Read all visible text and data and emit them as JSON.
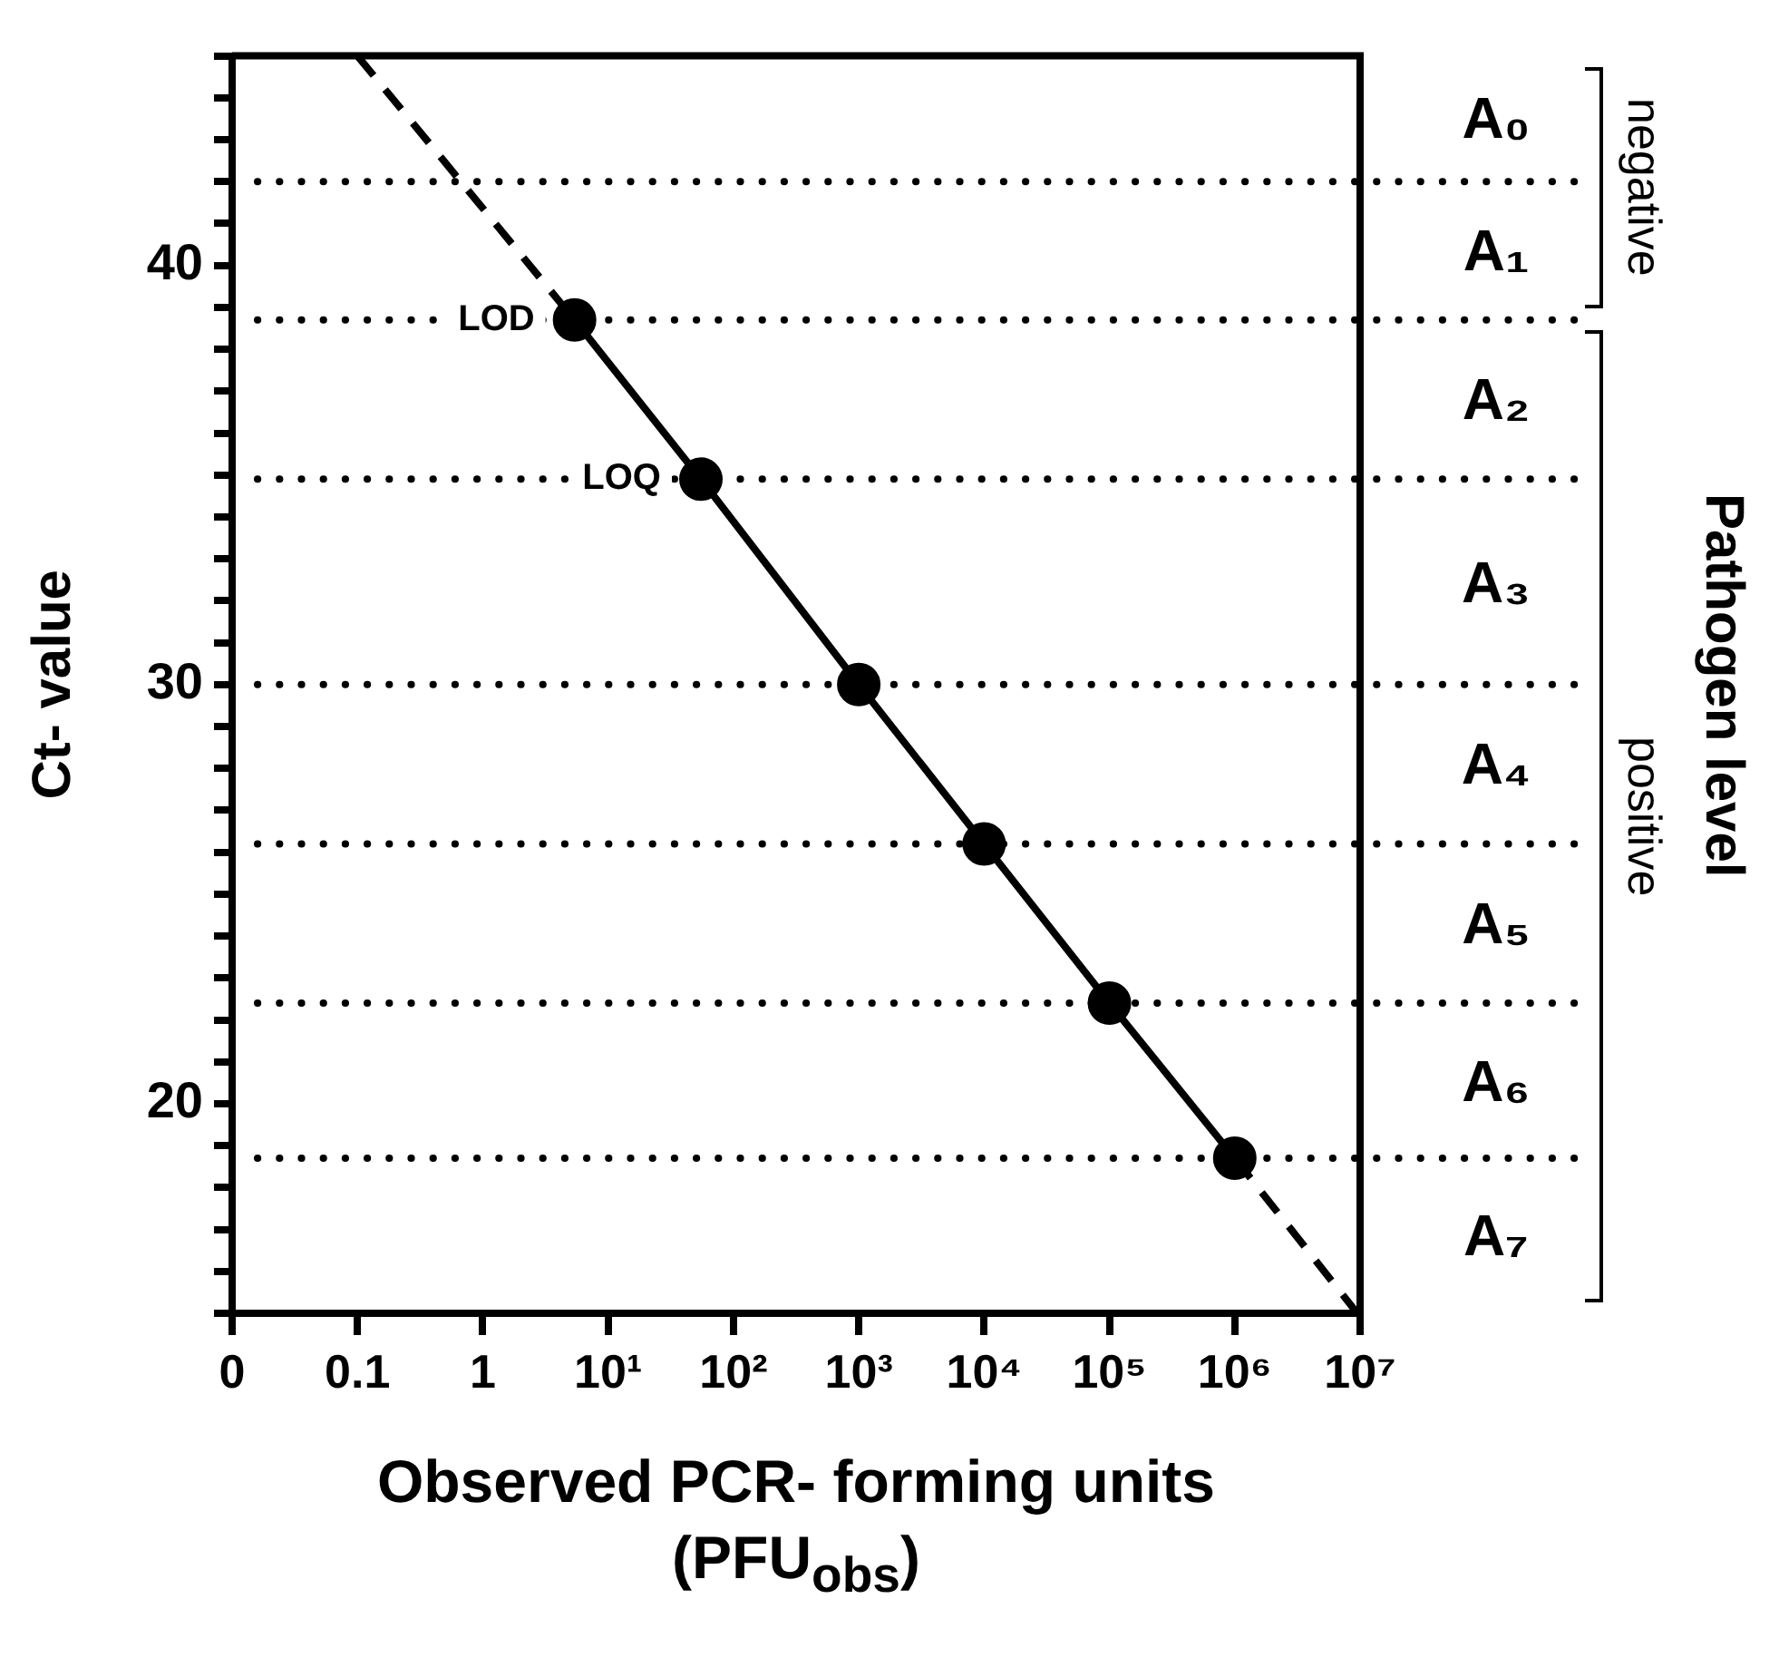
{
  "chart_data": {
    "type": "line",
    "xlabel": "Observed PCR- forming units\n(PFU$_{obs}$)",
    "ylabel": "Ct- value",
    "log": "x",
    "grid": false,
    "legend": false,
    "xlim": [
      0.01,
      10000000
    ],
    "xticks": [
      {
        "value": 0.01,
        "label": "0"
      },
      0.1,
      1,
      {
        "value": 10,
        "label": "10¹"
      },
      {
        "value": 100,
        "label": "10²"
      },
      {
        "value": 1000,
        "label": "10³"
      },
      {
        "value": 10000,
        "label": "10⁴"
      },
      {
        "value": 100000,
        "label": "10⁵"
      },
      {
        "value": 1000000,
        "label": "10⁶"
      },
      {
        "value": 10000000,
        "label": "10⁷"
      }
    ],
    "ylim": [
      15,
      45
    ],
    "yticks": [
      {
        "value": 15,
        "label": null
      },
      {
        "value": 16,
        "label": null
      },
      {
        "value": 17,
        "label": null
      },
      {
        "value": 18,
        "label": null
      },
      {
        "value": 19,
        "label": null
      },
      20,
      {
        "value": 21,
        "label": null
      },
      {
        "value": 22,
        "label": null
      },
      {
        "value": 23,
        "label": null
      },
      {
        "value": 24,
        "label": null
      },
      {
        "value": 25,
        "label": null
      },
      {
        "value": 26,
        "label": null
      },
      {
        "value": 27,
        "label": null
      },
      {
        "value": 28,
        "label": null
      },
      {
        "value": 29,
        "label": null
      },
      30,
      {
        "value": 31,
        "label": null
      },
      {
        "value": 32,
        "label": null
      },
      {
        "value": 33,
        "label": null
      },
      {
        "value": 34,
        "label": null
      },
      {
        "value": 35,
        "label": null
      },
      {
        "value": 36,
        "label": null
      },
      {
        "value": 37,
        "label": null
      },
      {
        "value": 38,
        "label": null
      },
      {
        "value": 39,
        "label": null
      },
      40,
      {
        "value": 41,
        "label": null
      },
      {
        "value": 42,
        "label": null
      },
      {
        "value": 43,
        "label": null
      },
      {
        "value": 44,
        "label": null
      },
      {
        "value": 45,
        "label": null
      }
    ],
    "series": [
      {
        "color": "#000000",
        "marker": "circle",
        "line_style": "solid",
        "x": [
          5.4,
          55,
          1000,
          10000,
          100000,
          1000000
        ],
        "values": [
          38.7,
          34.9,
          30,
          26.2,
          22.4,
          18.7
        ]
      },
      {
        "color": "#000000",
        "marker": "none",
        "line_style": "dashed",
        "x": [
          0.1,
          5.4,
          100,
          1000000,
          9500000
        ],
        "values": [
          45,
          38.7,
          null,
          18.7,
          15
        ]
      }
    ],
    "ref_lines": [
      {
        "axis": "y",
        "value": 42,
        "color": "#000000",
        "line_style": "dotted"
      },
      {
        "axis": "y",
        "value": 38.7,
        "color": "#000000",
        "line_style": "dotted"
      },
      {
        "axis": "y",
        "value": 34.9,
        "color": "#000000",
        "line_style": "dotted"
      },
      {
        "axis": "y",
        "value": 30,
        "color": "#000000",
        "line_style": "dotted"
      },
      {
        "axis": "y",
        "value": 26.2,
        "color": "#000000",
        "line_style": "dotted"
      },
      {
        "axis": "y",
        "value": 22.4,
        "color": "#000000",
        "line_style": "dotted"
      },
      {
        "axis": "y",
        "value": 18.7,
        "color": "#000000",
        "line_style": "dotted"
      }
    ],
    "annotations": [
      {
        "text": "LOD",
        "x": 5.4,
        "y": 38.7
      },
      {
        "text": "LOQ",
        "x": 55,
        "y": 34.9
      },
      "A₀",
      "A₁",
      "A₂",
      "A₃",
      "A₄",
      "A₅",
      "A₆",
      "A₇",
      "negative",
      "positive",
      "Pathogen level"
    ]
  }
}
